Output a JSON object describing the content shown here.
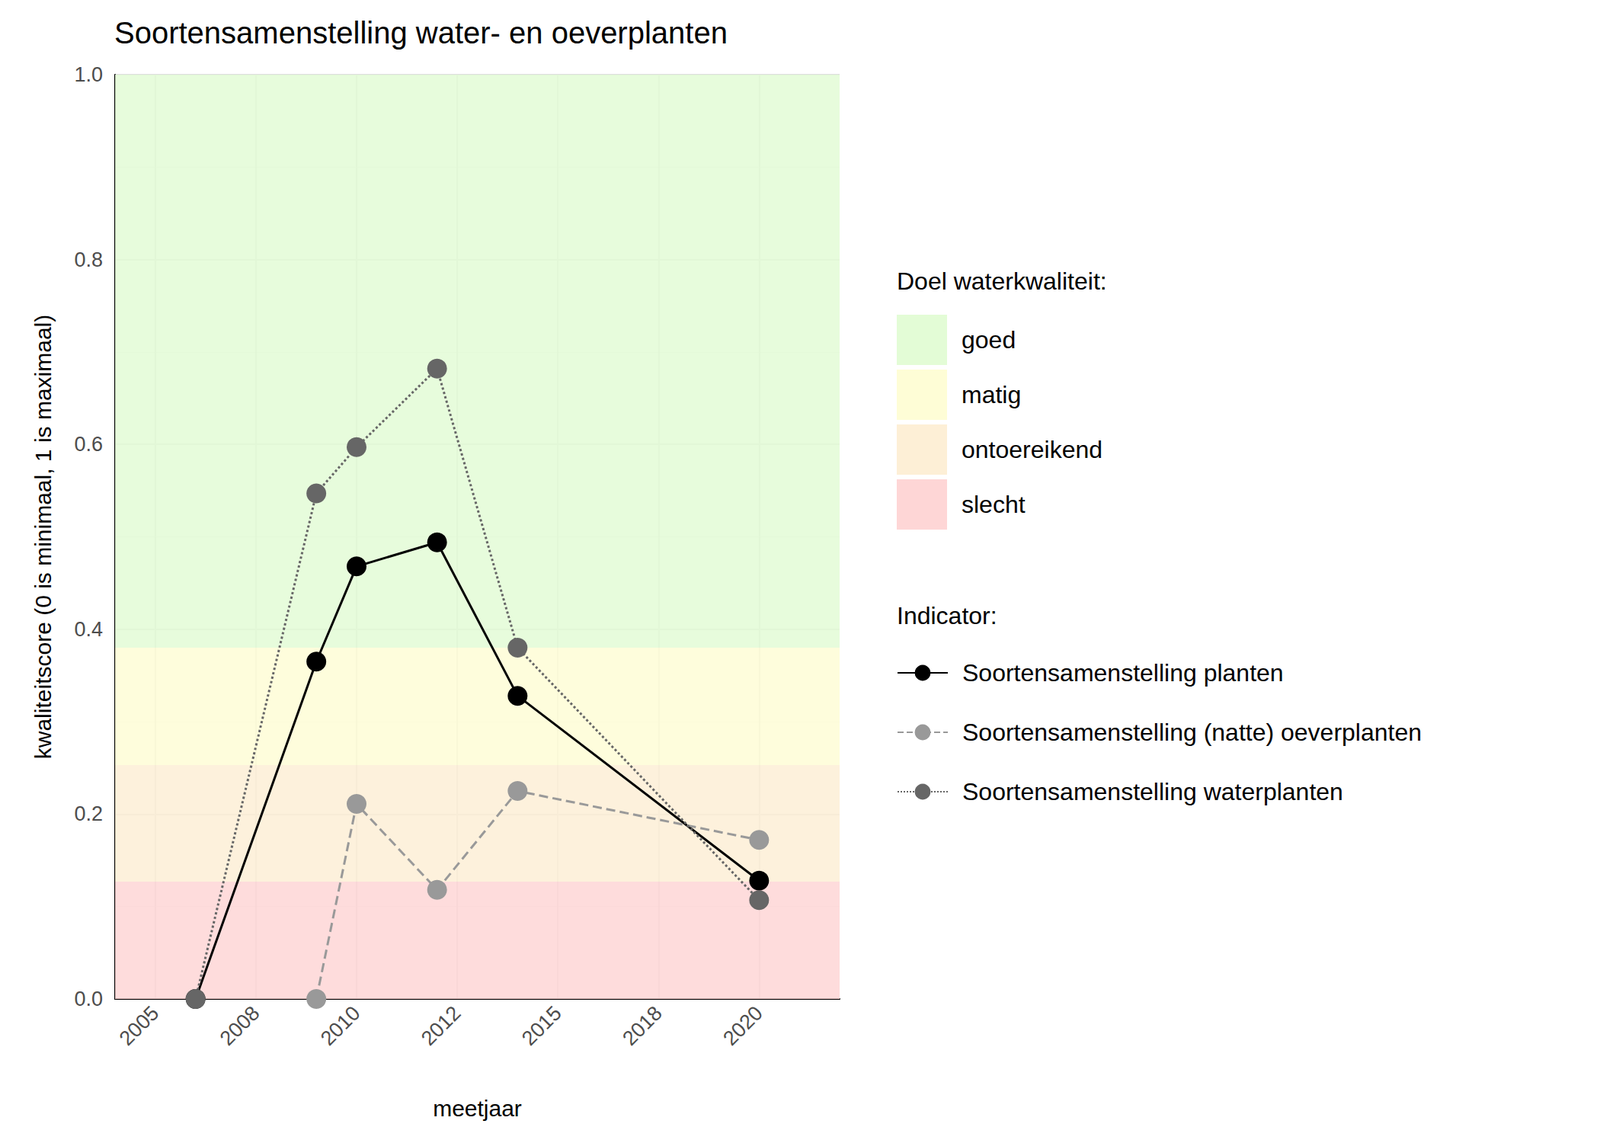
{
  "chart_data": {
    "type": "line",
    "title": "Soortensamenstelling water- en oeverplanten",
    "x_label": "meetjaar",
    "y_label": "kwaliteitscore (0 is minimaal, 1 is maximaal)",
    "x": [
      2006,
      2009,
      2010,
      2012,
      2014,
      2020
    ],
    "series": [
      {
        "name": "Soortensamenstelling planten",
        "color": "#000000",
        "marker": "circle",
        "line_style": "solid",
        "values": [
          0,
          0.365,
          0.468,
          0.494,
          0.328,
          0.128
        ]
      },
      {
        "name": "Soortensamenstelling (natte) oeverplanten",
        "color": "#999999",
        "marker": "circle",
        "line_style": "dashed",
        "values": [
          null,
          0,
          0.211,
          0.118,
          0.225,
          0.172
        ]
      },
      {
        "name": "Soortensamenstelling waterplanten",
        "color": "#666666",
        "marker": "circle",
        "line_style": "dotted",
        "values": [
          0,
          0.547,
          0.597,
          0.682,
          0.38,
          0.107
        ]
      }
    ],
    "xlim": [
      2004,
      2022
    ],
    "xticks": [
      {
        "value": 2005,
        "label": "2005"
      },
      {
        "value": 2007.5,
        "label": "2008"
      },
      {
        "value": 2010,
        "label": "2010"
      },
      {
        "value": 2012.5,
        "label": "2012"
      },
      {
        "value": 2015,
        "label": "2015"
      },
      {
        "value": 2017.5,
        "label": "2018"
      },
      {
        "value": 2020,
        "label": "2020"
      }
    ],
    "ylim": [
      0,
      1
    ],
    "yticks": [
      {
        "value": 0,
        "label": "0.0"
      },
      {
        "value": 0.2,
        "label": "0.2"
      },
      {
        "value": 0.4,
        "label": "0.4"
      },
      {
        "value": 0.6,
        "label": "0.6"
      },
      {
        "value": 0.8,
        "label": "0.8"
      },
      {
        "value": 1,
        "label": "1.0"
      }
    ],
    "grid": true,
    "legend": "right",
    "legend_title": "Indicator:",
    "band_legend_title": "Doel waterkwaliteit:",
    "bands": [
      {
        "name": "goed",
        "color": "#e3fcd6",
        "from": 0.38,
        "to": 1
      },
      {
        "name": "matig",
        "color": "#fefdd6",
        "from": 0.253,
        "to": 0.38
      },
      {
        "name": "ontoereikend",
        "color": "#fdefd6",
        "from": 0.127,
        "to": 0.253
      },
      {
        "name": "slecht",
        "color": "#fed6d6",
        "from": 0,
        "to": 0.127
      }
    ]
  }
}
